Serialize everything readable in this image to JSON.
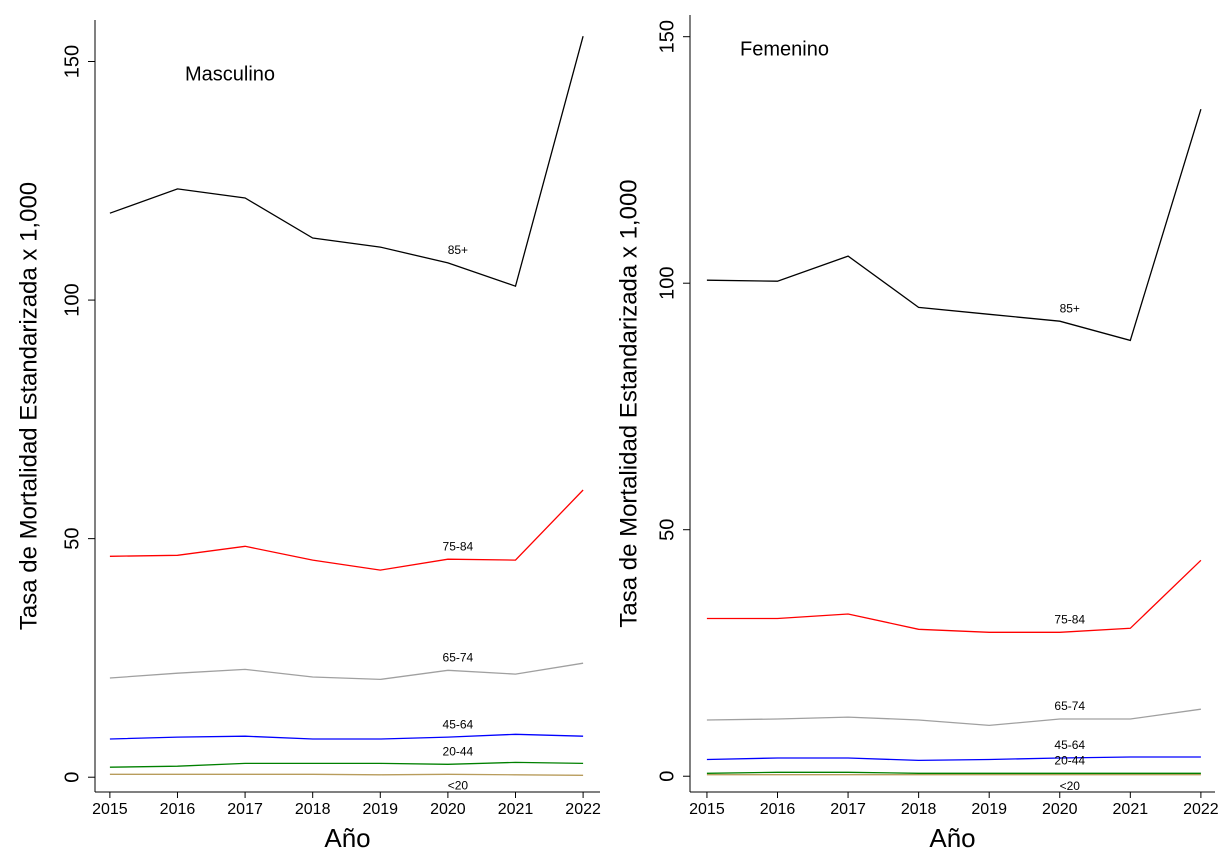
{
  "chart_data": [
    {
      "type": "line",
      "title": "Masculino",
      "x_label": "Año",
      "y_label": "Tasa de Mortalidad Estandarizada x 1,000",
      "x": [
        2015,
        2016,
        2017,
        2018,
        2019,
        2020,
        2021,
        2022
      ],
      "xlim": [
        2014.78,
        2022.25
      ],
      "xticks": [
        2015,
        2016,
        2017,
        2018,
        2019,
        2020,
        2021,
        2022
      ],
      "ylim": [
        -3.1,
        158.7
      ],
      "yticks": [
        0,
        50,
        100,
        150
      ],
      "grid": false,
      "series": [
        {
          "name": "85+",
          "color": "#000000",
          "values": [
            118.2,
            123.3,
            121.4,
            113,
            111.1,
            107.8,
            102.9,
            155.3
          ]
        },
        {
          "name": "75-84",
          "color": "#ff0000",
          "values": [
            46.3,
            46.5,
            48.4,
            45.5,
            43.4,
            45.7,
            45.5,
            60.2
          ]
        },
        {
          "name": "65-74",
          "color": "#a0a0a0",
          "values": [
            20.8,
            21.8,
            22.6,
            21,
            20.5,
            22.4,
            21.6,
            23.9
          ]
        },
        {
          "name": "45-64",
          "color": "#0000ff",
          "values": [
            8,
            8.4,
            8.6,
            8,
            8,
            8.4,
            9,
            8.6
          ]
        },
        {
          "name": "20-44",
          "color": "#008000",
          "values": [
            2.1,
            2.3,
            2.9,
            2.9,
            2.9,
            2.7,
            3.1,
            2.9
          ]
        },
        {
          "name": "<20",
          "color": "#b89c5c",
          "values": [
            0.6,
            0.6,
            0.6,
            0.6,
            0.5,
            0.6,
            0.5,
            0.4
          ]
        }
      ]
    },
    {
      "type": "line",
      "title": "Femenino",
      "x_label": "Año",
      "y_label": "Tasa de Mortalidad Estandarizada x 1,000",
      "x": [
        2015,
        2016,
        2017,
        2018,
        2019,
        2020,
        2021,
        2022
      ],
      "xlim": [
        2014.76,
        2022.2
      ],
      "xticks": [
        2015,
        2016,
        2017,
        2018,
        2019,
        2020,
        2021,
        2022
      ],
      "ylim": [
        -3.2,
        154.4
      ],
      "yticks": [
        0,
        50,
        100,
        150
      ],
      "grid": false,
      "series": [
        {
          "name": "85+",
          "color": "#000000",
          "values": [
            100.6,
            100.4,
            105.5,
            95.1,
            93.7,
            92.3,
            88.4,
            135.3
          ]
        },
        {
          "name": "75-84",
          "color": "#ff0000",
          "values": [
            32,
            32,
            32.9,
            29.8,
            29.2,
            29.2,
            30,
            43.8
          ]
        },
        {
          "name": "65-74",
          "color": "#a0a0a0",
          "values": [
            11.4,
            11.6,
            12,
            11.4,
            10.3,
            11.6,
            11.6,
            13.6
          ]
        },
        {
          "name": "45-64",
          "color": "#0000ff",
          "values": [
            3.4,
            3.7,
            3.7,
            3.2,
            3.4,
            3.7,
            3.9,
            3.9
          ]
        },
        {
          "name": "20-44",
          "color": "#008000",
          "values": [
            0.6,
            0.8,
            0.8,
            0.6,
            0.6,
            0.6,
            0.6,
            0.6
          ]
        },
        {
          "name": "<20",
          "color": "#b89c5c",
          "values": [
            0.3,
            0.3,
            0.3,
            0.3,
            0.3,
            0.3,
            0.3,
            0.3
          ]
        }
      ]
    }
  ]
}
